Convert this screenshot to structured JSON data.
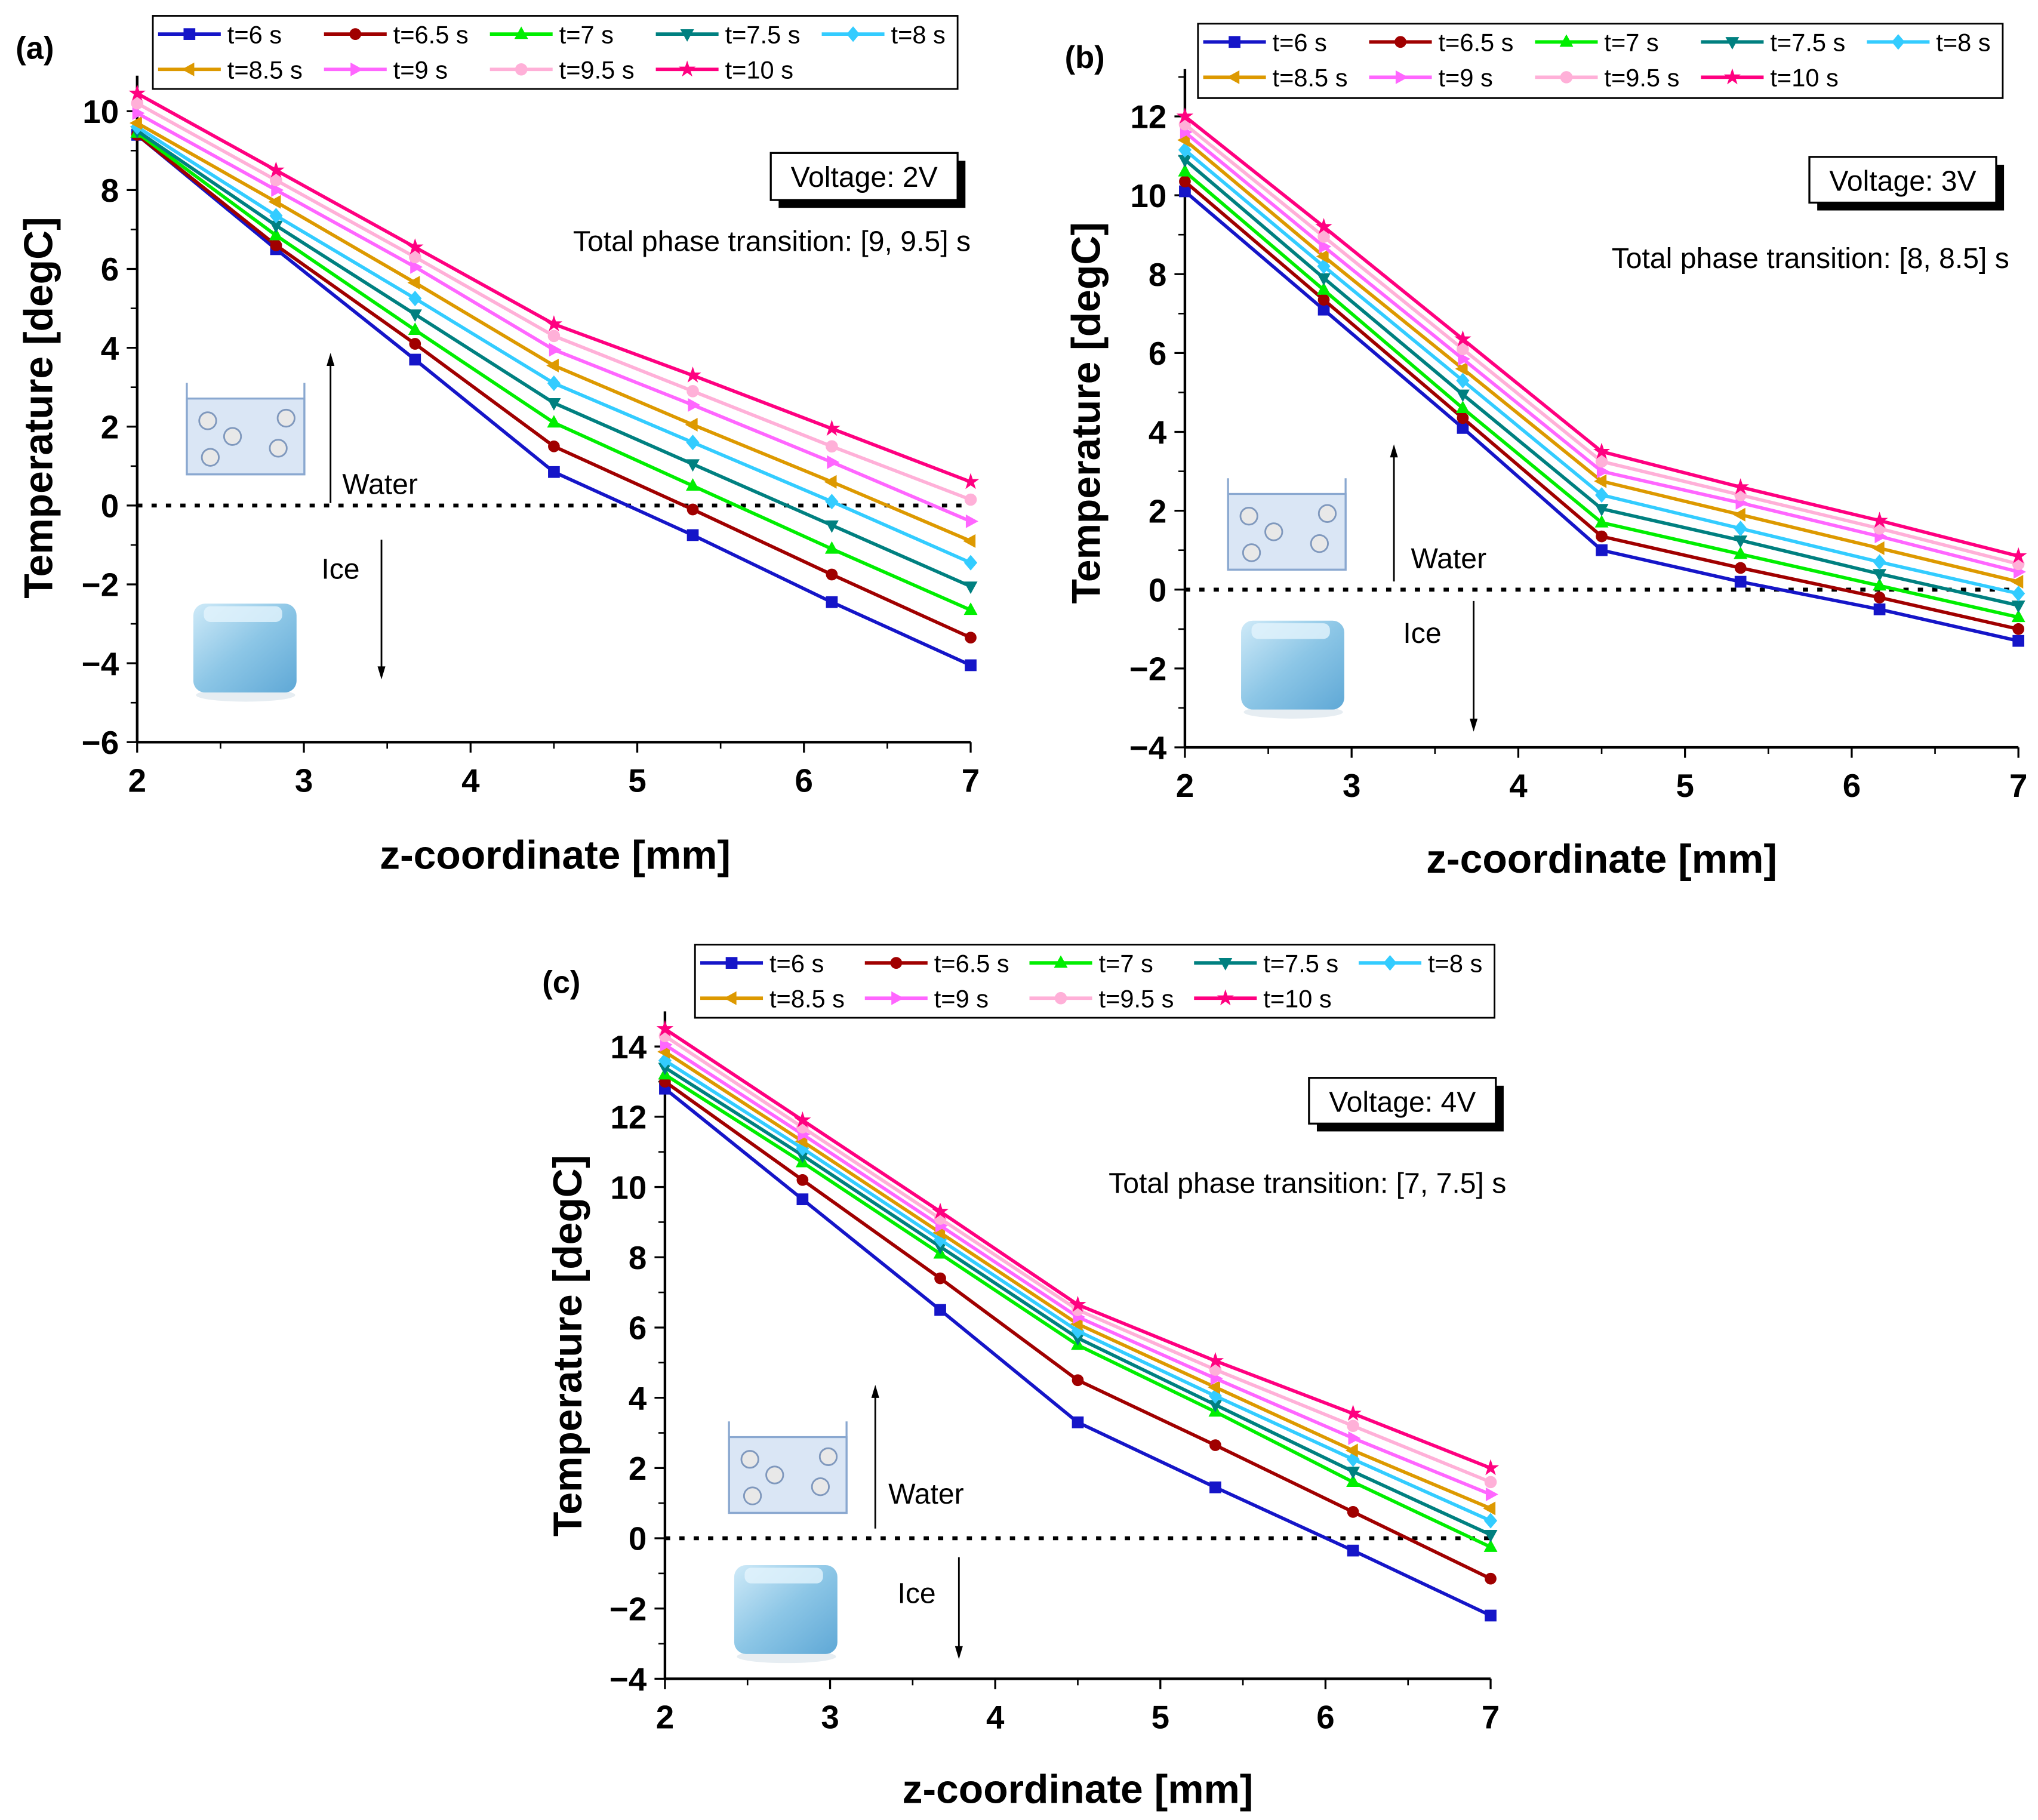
{
  "series_style": [
    {
      "name": "t=6 s",
      "color": "#1515c8",
      "marker": "square"
    },
    {
      "name": "t=6.5 s",
      "color": "#a00000",
      "marker": "circle"
    },
    {
      "name": "t=7 s",
      "color": "#00ee00",
      "marker": "triangle-up"
    },
    {
      "name": "t=7.5 s",
      "color": "#008080",
      "marker": "triangle-down"
    },
    {
      "name": "t=8 s",
      "color": "#33ccff",
      "marker": "diamond"
    },
    {
      "name": "t=8.5 s",
      "color": "#dd9900",
      "marker": "triangle-left"
    },
    {
      "name": "t=9 s",
      "color": "#ff66ff",
      "marker": "triangle-right"
    },
    {
      "name": "t=9.5 s",
      "color": "#ffb0d8",
      "marker": "hexagon"
    },
    {
      "name": "t=10 s",
      "color": "#ff0080",
      "marker": "star"
    }
  ],
  "chart_data": [
    {
      "panel": "(a)",
      "type": "line",
      "xlabel": "z-coordinate [mm]",
      "ylabel": "Temperature [degC]",
      "xlim": [
        2,
        7
      ],
      "ylim": [
        -6,
        10.9
      ],
      "xticks": [
        2,
        3,
        4,
        5,
        6,
        7
      ],
      "yticks": [
        -6,
        -4,
        -2,
        0,
        2,
        4,
        6,
        8,
        10
      ],
      "voltage": "Voltage: 2V",
      "phase": "Total phase transition: [9, 9.5] s",
      "water": "Water",
      "ice": "Ice",
      "reference_line_y": 0,
      "legend": "top",
      "x": [
        2,
        2.833,
        3.667,
        4.5,
        5.333,
        6.167,
        7
      ],
      "series": [
        {
          "name": "t=6 s",
          "values": [
            9.4,
            6.5,
            3.7,
            0.85,
            -0.75,
            -2.45,
            -4.05
          ]
        },
        {
          "name": "t=6.5 s",
          "values": [
            9.4,
            6.6,
            4.1,
            1.5,
            -0.1,
            -1.75,
            -3.35
          ]
        },
        {
          "name": "t=7 s",
          "values": [
            9.45,
            6.85,
            4.45,
            2.1,
            0.5,
            -1.1,
            -2.65
          ]
        },
        {
          "name": "t=7.5 s",
          "values": [
            9.5,
            7.1,
            4.85,
            2.6,
            1.05,
            -0.5,
            -2.05
          ]
        },
        {
          "name": "t=8 s",
          "values": [
            9.6,
            7.35,
            5.25,
            3.1,
            1.6,
            0.1,
            -1.45
          ]
        },
        {
          "name": "t=8.5 s",
          "values": [
            9.7,
            7.7,
            5.65,
            3.55,
            2.05,
            0.6,
            -0.9
          ]
        },
        {
          "name": "t=9 s",
          "values": [
            9.95,
            8.0,
            6.05,
            3.95,
            2.55,
            1.1,
            -0.4
          ]
        },
        {
          "name": "t=9.5 s",
          "values": [
            10.2,
            8.25,
            6.3,
            4.3,
            2.9,
            1.5,
            0.15
          ]
        },
        {
          "name": "t=10 s",
          "values": [
            10.45,
            8.5,
            6.55,
            4.6,
            3.3,
            1.95,
            0.6
          ]
        }
      ]
    },
    {
      "panel": "(b)",
      "type": "line",
      "xlabel": "z-coordinate [mm]",
      "ylabel": "Temperature [degC]",
      "xlim": [
        2,
        7
      ],
      "ylim": [
        -4,
        13.2
      ],
      "xticks": [
        2,
        3,
        4,
        5,
        6,
        7
      ],
      "yticks": [
        -4,
        -2,
        0,
        2,
        4,
        6,
        8,
        10,
        12
      ],
      "voltage": "Voltage: 3V",
      "phase": "Total phase transition: [8, 8.5] s",
      "water": "Water",
      "ice": "Ice",
      "reference_line_y": 0,
      "legend": "top",
      "x": [
        2,
        2.833,
        3.667,
        4.5,
        5.333,
        6.167,
        7
      ],
      "series": [
        {
          "name": "t=6 s",
          "values": [
            10.1,
            7.1,
            4.1,
            1.0,
            0.2,
            -0.5,
            -1.3
          ]
        },
        {
          "name": "t=6.5 s",
          "values": [
            10.35,
            7.35,
            4.35,
            1.35,
            0.55,
            -0.2,
            -1.0
          ]
        },
        {
          "name": "t=7 s",
          "values": [
            10.6,
            7.6,
            4.6,
            1.7,
            0.9,
            0.1,
            -0.7
          ]
        },
        {
          "name": "t=7.5 s",
          "values": [
            10.9,
            7.9,
            4.95,
            2.05,
            1.25,
            0.4,
            -0.4
          ]
        },
        {
          "name": "t=8 s",
          "values": [
            11.15,
            8.2,
            5.3,
            2.4,
            1.55,
            0.7,
            -0.1
          ]
        },
        {
          "name": "t=8.5 s",
          "values": [
            11.4,
            8.45,
            5.6,
            2.75,
            1.9,
            1.05,
            0.2
          ]
        },
        {
          "name": "t=9 s",
          "values": [
            11.6,
            8.7,
            5.85,
            3.0,
            2.2,
            1.35,
            0.45
          ]
        },
        {
          "name": "t=9.5 s",
          "values": [
            11.8,
            8.95,
            6.1,
            3.25,
            2.4,
            1.55,
            0.65
          ]
        },
        {
          "name": "t=10 s",
          "values": [
            12.0,
            9.2,
            6.35,
            3.5,
            2.6,
            1.75,
            0.85
          ]
        }
      ]
    },
    {
      "panel": "(c)",
      "type": "line",
      "xlabel": "z-coordinate [mm]",
      "ylabel": "Temperature [degC]",
      "xlim": [
        2,
        7
      ],
      "ylim": [
        -4,
        15
      ],
      "xticks": [
        2,
        3,
        4,
        5,
        6,
        7
      ],
      "yticks": [
        -4,
        -2,
        0,
        2,
        4,
        6,
        8,
        10,
        12,
        14
      ],
      "voltage": "Voltage: 4V",
      "phase": "Total phase transition: [7, 7.5] s",
      "water": "Water",
      "ice": "Ice",
      "reference_line_y": 0,
      "legend": "top",
      "x": [
        2,
        2.833,
        3.667,
        4.5,
        5.333,
        6.167,
        7
      ],
      "series": [
        {
          "name": "t=6 s",
          "values": [
            12.8,
            9.65,
            6.5,
            3.3,
            1.45,
            -0.35,
            -2.2
          ]
        },
        {
          "name": "t=6.5 s",
          "values": [
            13.0,
            10.2,
            7.4,
            4.5,
            2.65,
            0.75,
            -1.15
          ]
        },
        {
          "name": "t=7 s",
          "values": [
            13.2,
            10.7,
            8.1,
            5.5,
            3.6,
            1.6,
            -0.25
          ]
        },
        {
          "name": "t=7.5 s",
          "values": [
            13.4,
            10.9,
            8.3,
            5.7,
            3.8,
            1.9,
            0.1
          ]
        },
        {
          "name": "t=8 s",
          "values": [
            13.6,
            11.1,
            8.5,
            5.9,
            4.05,
            2.25,
            0.5
          ]
        },
        {
          "name": "t=8.5 s",
          "values": [
            13.85,
            11.3,
            8.7,
            6.1,
            4.3,
            2.5,
            0.85
          ]
        },
        {
          "name": "t=9 s",
          "values": [
            14.05,
            11.5,
            8.9,
            6.3,
            4.55,
            2.85,
            1.25
          ]
        },
        {
          "name": "t=9.5 s",
          "values": [
            14.3,
            11.7,
            9.1,
            6.5,
            4.8,
            3.2,
            1.6
          ]
        },
        {
          "name": "t=10 s",
          "values": [
            14.5,
            11.9,
            9.3,
            6.65,
            5.05,
            3.55,
            2.0
          ]
        }
      ]
    }
  ]
}
